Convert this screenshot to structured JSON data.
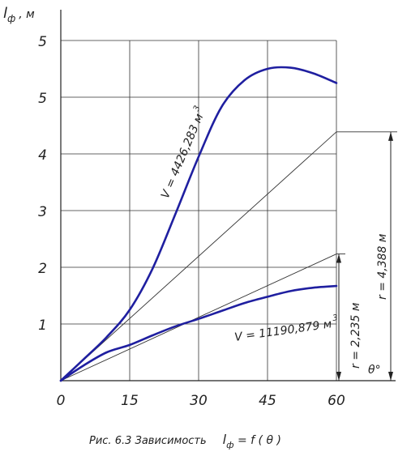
{
  "chart_data": {
    "type": "line",
    "ylabel_main": "l",
    "ylabel_sub": "ф",
    "ylabel_unit": ", м",
    "x_ticks": [
      "0",
      "15",
      "30",
      "45",
      "60"
    ],
    "y_ticks": [
      "1",
      "2",
      "3",
      "4",
      "5",
      "5"
    ],
    "xlim": [
      0,
      60
    ],
    "ylim": [
      0,
      6
    ],
    "grid": true,
    "series": [
      {
        "name": "V = 4426,283 м",
        "name_sup": "3",
        "color": "#1f1fa0",
        "x": [
          0,
          5,
          10,
          15,
          20,
          25,
          30,
          35,
          40,
          45,
          50,
          55,
          60
        ],
        "y": [
          0,
          0.38,
          0.77,
          1.25,
          1.98,
          2.95,
          3.95,
          4.83,
          5.3,
          5.5,
          5.52,
          5.42,
          5.25
        ]
      },
      {
        "name": "V = 11190,879 м",
        "name_sup": "3",
        "color": "#1f1fa0",
        "x": [
          0,
          5,
          10,
          15,
          20,
          25,
          30,
          35,
          40,
          45,
          50,
          55,
          60
        ],
        "y": [
          0,
          0.27,
          0.5,
          0.63,
          0.8,
          0.96,
          1.09,
          1.23,
          1.37,
          1.48,
          1.58,
          1.64,
          1.67
        ]
      }
    ],
    "tangents": [
      {
        "x": [
          0,
          60
        ],
        "y": [
          0,
          4.388
        ]
      },
      {
        "x": [
          0,
          60
        ],
        "y": [
          0,
          2.235
        ]
      }
    ],
    "dims": [
      {
        "label": "r = 4,388 м",
        "y": 4.388
      },
      {
        "label": "r = 2,235 м",
        "y": 2.235
      }
    ],
    "theta_label": "θ°",
    "caption_prefix": "Рис. 6.3 Зависимость",
    "caption_formula": "l",
    "caption_formula_sub": "ф",
    "caption_formula_rest": " =  f ( θ )"
  }
}
